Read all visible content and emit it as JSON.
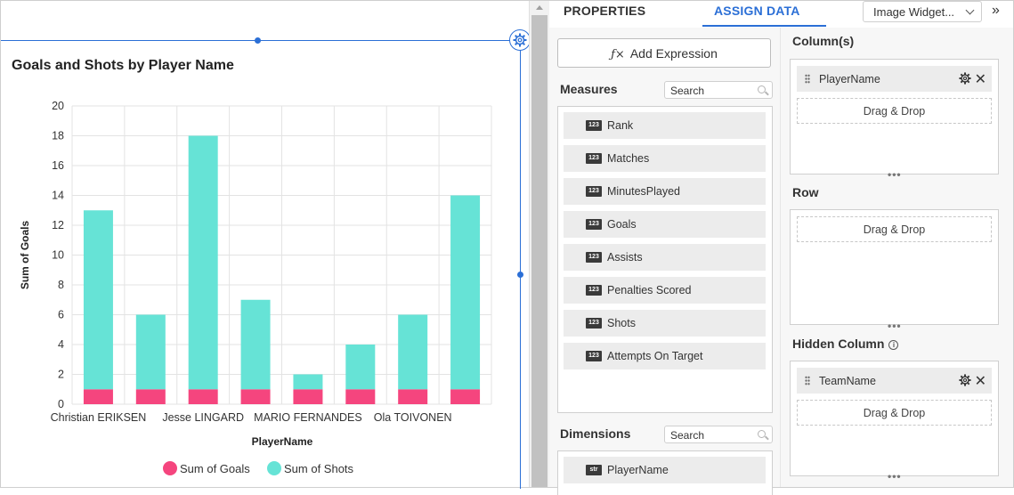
{
  "chart": {
    "title": "Goals and Shots by Player Name"
  },
  "chart_data": {
    "type": "bar",
    "stacked": true,
    "categories": [
      "Christian ERIKSEN",
      "",
      "Jesse LINGARD",
      "",
      "MARIO FERNANDES",
      "",
      "Ola TOIVONEN",
      ""
    ],
    "series": [
      {
        "name": "Sum of Goals",
        "color": "#f5457e",
        "values": [
          1,
          1,
          1,
          1,
          1,
          1,
          1,
          1
        ]
      },
      {
        "name": "Sum of Shots",
        "color": "#66e3d6",
        "values": [
          12,
          5,
          17,
          6,
          1,
          3,
          5,
          13
        ]
      }
    ],
    "xlabel": "PlayerName",
    "ylabel": "Sum of Goals",
    "ylim": [
      0,
      20
    ],
    "yticks": [
      "0",
      "2",
      "4",
      "6",
      "8",
      "10",
      "12",
      "14",
      "16",
      "18",
      "20"
    ],
    "grid": true,
    "legend": "bottom"
  },
  "panel": {
    "tabs": {
      "properties": "PROPERTIES",
      "assign": "ASSIGN DATA"
    },
    "widget_selector": "Image Widget...",
    "collapse": "»",
    "add_expression": "Add Expression",
    "measures": {
      "label": "Measures",
      "search_placeholder": "Search",
      "items": [
        {
          "type": "123",
          "name": "Rank"
        },
        {
          "type": "123",
          "name": "Matches"
        },
        {
          "type": "123",
          "name": "MinutesPlayed"
        },
        {
          "type": "123",
          "name": "Goals"
        },
        {
          "type": "123",
          "name": "Assists"
        },
        {
          "type": "123",
          "name": "Penalties Scored"
        },
        {
          "type": "123",
          "name": "Shots"
        },
        {
          "type": "123",
          "name": "Attempts On Target"
        }
      ]
    },
    "dimensions": {
      "label": "Dimensions",
      "search_placeholder": "Search",
      "items": [
        {
          "type": "str",
          "name": "PlayerName"
        }
      ]
    },
    "columns": {
      "label": "Column(s)",
      "assigned": "PlayerName",
      "drop_text": "Drag & Drop"
    },
    "row": {
      "label": "Row",
      "drop_text": "Drag & Drop"
    },
    "hidden_column": {
      "label": "Hidden Column",
      "assigned": "TeamName",
      "drop_text": "Drag & Drop"
    }
  }
}
